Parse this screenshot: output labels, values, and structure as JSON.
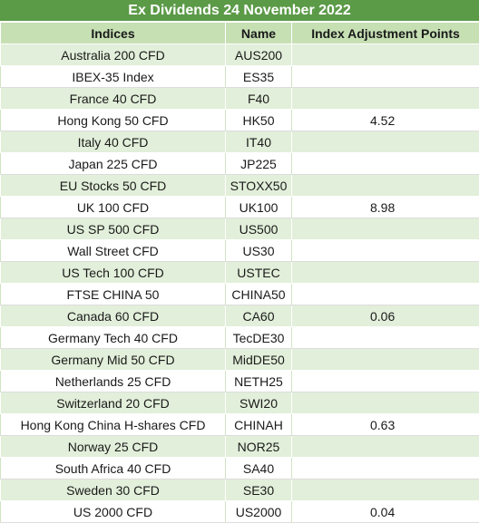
{
  "title": "Ex Dividends 24 November 2022",
  "headers": {
    "indices": "Indices",
    "name": "Name",
    "adjustment": "Index Adjustment Points"
  },
  "rows": [
    {
      "index": "Australia 200 CFD",
      "name": "AUS200",
      "adjustment": ""
    },
    {
      "index": "IBEX-35 Index",
      "name": "ES35",
      "adjustment": ""
    },
    {
      "index": "France 40 CFD",
      "name": "F40",
      "adjustment": ""
    },
    {
      "index": "Hong Kong 50 CFD",
      "name": "HK50",
      "adjustment": "4.52"
    },
    {
      "index": "Italy 40 CFD",
      "name": "IT40",
      "adjustment": ""
    },
    {
      "index": "Japan 225 CFD",
      "name": "JP225",
      "adjustment": ""
    },
    {
      "index": "EU Stocks 50 CFD",
      "name": "STOXX50",
      "adjustment": ""
    },
    {
      "index": "UK 100 CFD",
      "name": "UK100",
      "adjustment": "8.98"
    },
    {
      "index": "US SP 500 CFD",
      "name": "US500",
      "adjustment": ""
    },
    {
      "index": "Wall Street CFD",
      "name": "US30",
      "adjustment": ""
    },
    {
      "index": "US Tech 100 CFD",
      "name": "USTEC",
      "adjustment": ""
    },
    {
      "index": "FTSE CHINA 50",
      "name": "CHINA50",
      "adjustment": ""
    },
    {
      "index": "Canada 60 CFD",
      "name": "CA60",
      "adjustment": "0.06"
    },
    {
      "index": "Germany Tech 40 CFD",
      "name": "TecDE30",
      "adjustment": ""
    },
    {
      "index": "Germany Mid 50 CFD",
      "name": "MidDE50",
      "adjustment": ""
    },
    {
      "index": "Netherlands 25 CFD",
      "name": "NETH25",
      "adjustment": ""
    },
    {
      "index": "Switzerland 20 CFD",
      "name": "SWI20",
      "adjustment": ""
    },
    {
      "index": "Hong Kong China H-shares CFD",
      "name": "CHINAH",
      "adjustment": "0.63"
    },
    {
      "index": "Norway 25 CFD",
      "name": "NOR25",
      "adjustment": ""
    },
    {
      "index": "South Africa 40 CFD",
      "name": "SA40",
      "adjustment": ""
    },
    {
      "index": "Sweden 30 CFD",
      "name": "SE30",
      "adjustment": ""
    },
    {
      "index": "US 2000 CFD",
      "name": "US2000",
      "adjustment": "0.04"
    }
  ],
  "colors": {
    "title_bg": "#5b9a47",
    "header_bg": "#c6e0b4",
    "band_bg": "#e2efda"
  }
}
